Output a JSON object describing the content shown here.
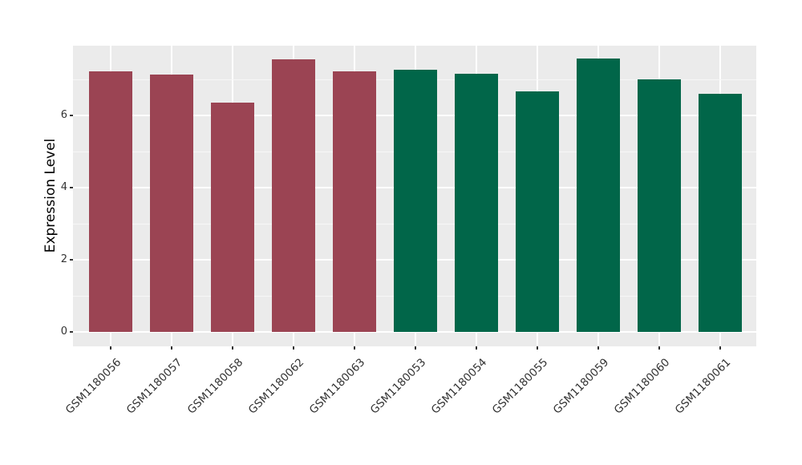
{
  "figure": {
    "background_color": "#FFFFFF"
  },
  "chart_data": {
    "type": "bar",
    "title": "",
    "xlabel": "",
    "ylabel": "Expression Level",
    "categories": [
      "GSM1180056",
      "GSM1180057",
      "GSM1180058",
      "GSM1180062",
      "GSM1180063",
      "GSM1180053",
      "GSM1180054",
      "GSM1180055",
      "GSM1180059",
      "GSM1180060",
      "GSM1180061"
    ],
    "values": [
      7.23,
      7.13,
      6.36,
      7.56,
      7.22,
      7.26,
      7.16,
      6.67,
      7.58,
      6.99,
      6.61
    ],
    "bar_colors": [
      "#9B4453",
      "#9B4453",
      "#9B4453",
      "#9B4453",
      "#9B4453",
      "#016649",
      "#016649",
      "#016649",
      "#016649",
      "#016649",
      "#016649"
    ],
    "color_groups": [
      {
        "color": "#9B4453",
        "samples": [
          "GSM1180056",
          "GSM1180057",
          "GSM1180058",
          "GSM1180062",
          "GSM1180063"
        ]
      },
      {
        "color": "#016649",
        "samples": [
          "GSM1180053",
          "GSM1180054",
          "GSM1180055",
          "GSM1180059",
          "GSM1180060",
          "GSM1180061"
        ]
      }
    ],
    "yticks": [
      0,
      2,
      4,
      6
    ],
    "minor_yticks": [
      1,
      3,
      5,
      7
    ],
    "ylim": [
      -0.4,
      7.93
    ],
    "grid": "on",
    "legend": "none",
    "x_tick_label_angle": 45,
    "panel_background": "#EBEBEB",
    "major_gridline_color": "#FFFFFF",
    "minor_gridline_color": "#F7F7F7",
    "tick_label_color": "#333333",
    "axis_title_color": "#000000"
  }
}
